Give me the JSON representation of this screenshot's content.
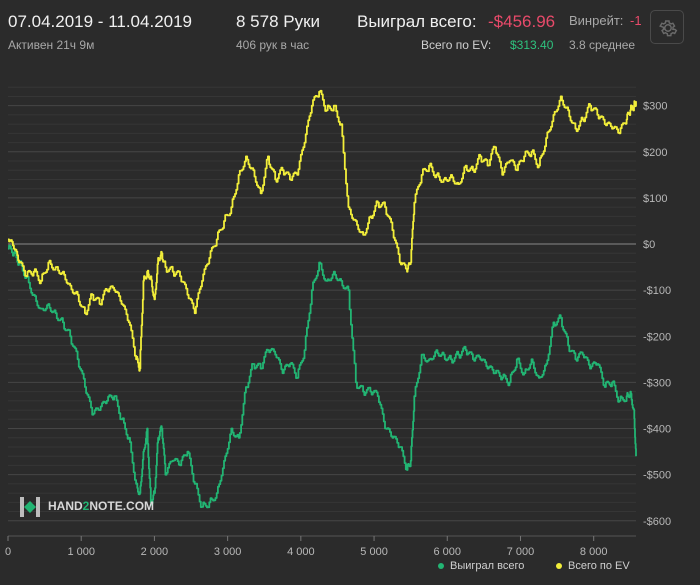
{
  "header": {
    "date_range": "07.04.2019 - 11.04.2019",
    "active_time": "Активен 21ч 9м",
    "hands": "8 578 Руки",
    "hands_per_hour": "406 рук в час",
    "won_total_label": "Выиграл всего:",
    "won_total_value": "-$456.96",
    "ev_total_label": "Всего по EV:",
    "ev_total_value": "$313.40",
    "winrate_label": "Винрейт:",
    "winrate_value": "-1",
    "winrate_avg": "3.8 среднее"
  },
  "colors": {
    "won": "#22b573",
    "ev": "#f2ee3a",
    "negative": "#e84a6a",
    "positive": "#2ec27e"
  },
  "logo": {
    "text_pre": "HAND",
    "text_mid": "2",
    "text_post": "NOTE.COM"
  },
  "chart_data": {
    "type": "line",
    "xlim": [
      0,
      8578
    ],
    "ylim": [
      -620,
      360
    ],
    "x_ticks": [
      0,
      1000,
      2000,
      3000,
      4000,
      5000,
      6000,
      7000,
      8000
    ],
    "x_tick_labels": [
      "0",
      "1 000",
      "2 000",
      "3 000",
      "4 000",
      "5 000",
      "6 000",
      "7 000",
      "8 000"
    ],
    "y_ticks": [
      300,
      200,
      100,
      0,
      -100,
      -200,
      -300,
      -400,
      -500,
      -600
    ],
    "y_tick_labels": [
      "$300",
      "$200",
      "$100",
      "$0",
      "-$100",
      "-$200",
      "-$300",
      "-$400",
      "-$500",
      "-$600"
    ],
    "grid": true,
    "legend_position": "bottom-right",
    "series": [
      {
        "name": "Выиграл всего",
        "color": "#22b573",
        "x": [
          0,
          80,
          150,
          250,
          350,
          450,
          550,
          650,
          750,
          850,
          950,
          1050,
          1150,
          1250,
          1350,
          1450,
          1550,
          1650,
          1750,
          1800,
          1850,
          1900,
          1950,
          2000,
          2050,
          2100,
          2150,
          2250,
          2350,
          2450,
          2550,
          2650,
          2750,
          2850,
          2950,
          3050,
          3150,
          3250,
          3350,
          3450,
          3550,
          3650,
          3750,
          3850,
          3950,
          4050,
          4150,
          4250,
          4350,
          4450,
          4550,
          4650,
          4750,
          4850,
          4950,
          5050,
          5150,
          5250,
          5350,
          5450,
          5500,
          5550,
          5650,
          5750,
          5850,
          5950,
          6050,
          6150,
          6250,
          6350,
          6450,
          6550,
          6650,
          6750,
          6850,
          6950,
          7050,
          7150,
          7250,
          7350,
          7450,
          7550,
          7650,
          7750,
          7850,
          7950,
          8050,
          8150,
          8250,
          8350,
          8450,
          8500,
          8550,
          8578
        ],
        "values": [
          -10,
          -20,
          -40,
          -70,
          -110,
          -140,
          -130,
          -150,
          -170,
          -200,
          -250,
          -310,
          -370,
          -360,
          -340,
          -330,
          -380,
          -420,
          -520,
          -540,
          -450,
          -400,
          -560,
          -540,
          -420,
          -400,
          -500,
          -470,
          -480,
          -450,
          -520,
          -570,
          -560,
          -540,
          -470,
          -400,
          -420,
          -310,
          -260,
          -270,
          -230,
          -240,
          -280,
          -260,
          -290,
          -230,
          -100,
          -40,
          -80,
          -60,
          -80,
          -100,
          -300,
          -320,
          -320,
          -330,
          -400,
          -420,
          -440,
          -490,
          -470,
          -330,
          -240,
          -250,
          -230,
          -240,
          -250,
          -240,
          -230,
          -250,
          -250,
          -270,
          -280,
          -290,
          -300,
          -250,
          -280,
          -250,
          -290,
          -260,
          -170,
          -160,
          -220,
          -250,
          -240,
          -270,
          -260,
          -310,
          -300,
          -340,
          -330,
          -320,
          -360,
          -460
        ]
      },
      {
        "name": "Всего по EV",
        "color": "#f2ee3a",
        "x": [
          0,
          80,
          150,
          250,
          350,
          450,
          550,
          650,
          750,
          850,
          950,
          1050,
          1150,
          1250,
          1350,
          1450,
          1550,
          1650,
          1750,
          1800,
          1850,
          1900,
          1950,
          2000,
          2050,
          2100,
          2150,
          2250,
          2350,
          2450,
          2550,
          2650,
          2750,
          2850,
          2950,
          3050,
          3150,
          3250,
          3350,
          3450,
          3550,
          3650,
          3750,
          3850,
          3950,
          4050,
          4150,
          4250,
          4350,
          4450,
          4550,
          4650,
          4750,
          4850,
          4950,
          5050,
          5150,
          5250,
          5350,
          5450,
          5500,
          5550,
          5650,
          5750,
          5850,
          5950,
          6050,
          6150,
          6250,
          6350,
          6450,
          6550,
          6650,
          6750,
          6850,
          6950,
          7050,
          7150,
          7250,
          7350,
          7450,
          7550,
          7650,
          7750,
          7850,
          7950,
          8050,
          8150,
          8250,
          8350,
          8450,
          8500,
          8550,
          8578
        ],
        "values": [
          10,
          -10,
          -40,
          -70,
          -60,
          -80,
          -40,
          -50,
          -60,
          -90,
          -110,
          -150,
          -110,
          -130,
          -100,
          -100,
          -130,
          -170,
          -250,
          -270,
          -80,
          -60,
          -70,
          -120,
          -30,
          -20,
          -50,
          -60,
          -70,
          -110,
          -150,
          -80,
          -30,
          10,
          50,
          80,
          150,
          190,
          160,
          110,
          190,
          140,
          160,
          140,
          150,
          220,
          300,
          330,
          290,
          300,
          260,
          80,
          50,
          20,
          60,
          90,
          80,
          30,
          -40,
          -60,
          -40,
          90,
          150,
          170,
          150,
          140,
          150,
          130,
          170,
          160,
          190,
          170,
          210,
          150,
          180,
          160,
          190,
          200,
          170,
          230,
          280,
          320,
          290,
          250,
          270,
          300,
          280,
          260,
          250,
          240,
          270,
          290,
          300,
          310
        ]
      }
    ]
  }
}
